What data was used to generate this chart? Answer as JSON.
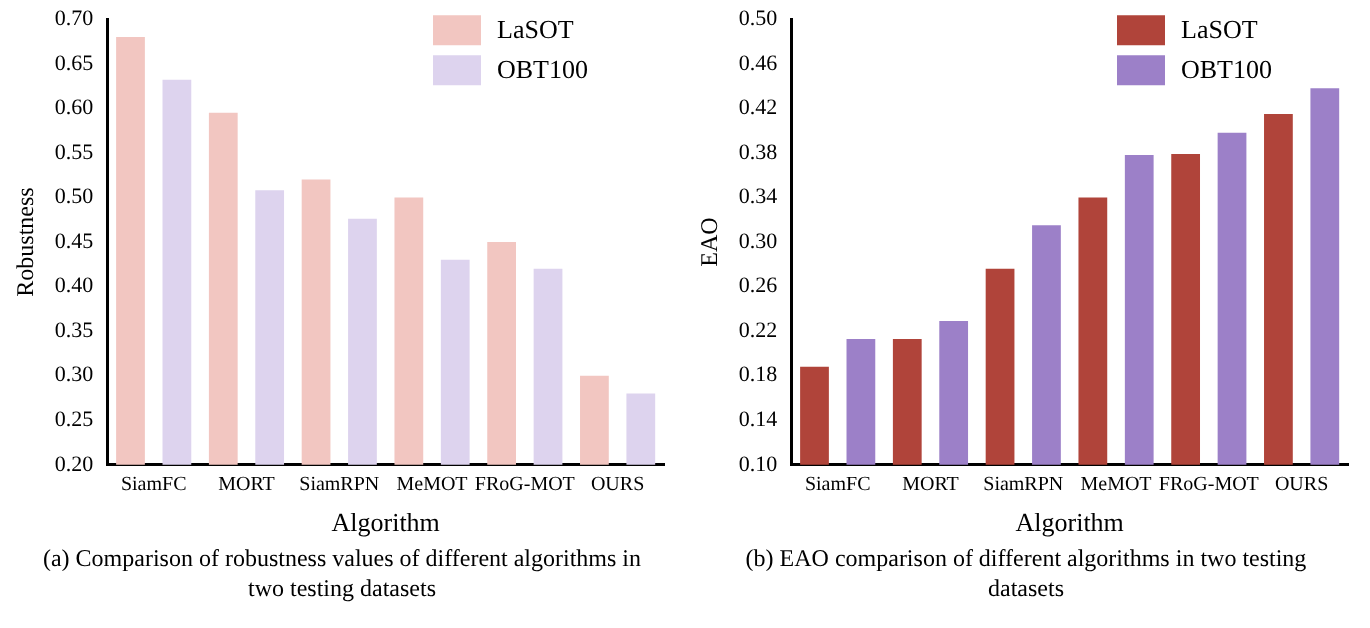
{
  "chart_data": [
    {
      "type": "bar",
      "title": "(a) Comparison of robustness values of different algorithms in two testing datasets",
      "xlabel": "Algorithm",
      "ylabel": "Robustness",
      "categories": [
        "SiamFC",
        "MORT",
        "SiamRPN",
        "MeMOT",
        "FRoG-MOT",
        "OURS"
      ],
      "series": [
        {
          "name": "LaSOT",
          "color": "#f2c6c1",
          "values": [
            0.68,
            0.595,
            0.52,
            0.5,
            0.45,
            0.3
          ]
        },
        {
          "name": "OBT100",
          "color": "#ddd3ee",
          "values": [
            0.632,
            0.508,
            0.476,
            0.43,
            0.42,
            0.28
          ]
        }
      ],
      "ylim": [
        0.2,
        0.7
      ],
      "yticks": [
        {
          "value": 0.2,
          "label": "0.20"
        },
        {
          "value": 0.25,
          "label": "0.25"
        },
        {
          "value": 0.3,
          "label": "0.30"
        },
        {
          "value": 0.35,
          "label": "0.35"
        },
        {
          "value": 0.4,
          "label": "0.40"
        },
        {
          "value": 0.45,
          "label": "0.45"
        },
        {
          "value": 0.5,
          "label": "0.50"
        },
        {
          "value": 0.55,
          "label": "0.55"
        },
        {
          "value": 0.6,
          "label": "0.60"
        },
        {
          "value": 0.65,
          "label": "0.65"
        },
        {
          "value": 0.7,
          "label": "0.70"
        }
      ],
      "grid": false,
      "legend": "top right"
    },
    {
      "type": "bar",
      "title": "(b) EAO comparison of different algorithms in two testing datasets",
      "xlabel": "Algorithm",
      "ylabel": "EAO",
      "categories": [
        "SiamFC",
        "MORT",
        "SiamRPN",
        "MeMOT",
        "FRoG-MOT",
        "OURS"
      ],
      "series": [
        {
          "name": "LaSOT",
          "color": "#b0443a",
          "values": [
            0.188,
            0.213,
            0.276,
            0.34,
            0.379,
            0.415
          ]
        },
        {
          "name": "OBT100",
          "color": "#9c80c8",
          "values": [
            0.213,
            0.229,
            0.315,
            0.378,
            0.398,
            0.438
          ]
        }
      ],
      "ylim": [
        0.1,
        0.5
      ],
      "yticks": [
        {
          "value": 0.1,
          "label": "0.10"
        },
        {
          "value": 0.14,
          "label": "0.14"
        },
        {
          "value": 0.18,
          "label": "0.18"
        },
        {
          "value": 0.22,
          "label": "0.22"
        },
        {
          "value": 0.26,
          "label": "0.26"
        },
        {
          "value": 0.3,
          "label": "0.30"
        },
        {
          "value": 0.34,
          "label": "0.34"
        },
        {
          "value": 0.38,
          "label": "0.38"
        },
        {
          "value": 0.42,
          "label": "0.42"
        },
        {
          "value": 0.46,
          "label": "0.46"
        },
        {
          "value": 0.5,
          "label": "0.50"
        }
      ],
      "grid": false,
      "legend": "top right"
    }
  ]
}
